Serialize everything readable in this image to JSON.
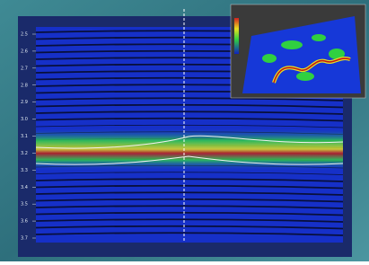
{
  "seismic_view": {
    "time_axis": {
      "ticks": [
        "2.5",
        "2.6",
        "2.7",
        "2.8",
        "2.9",
        "3.0",
        "3.1",
        "3.2",
        "3.3",
        "3.4",
        "3.5",
        "3.6",
        "3.7"
      ]
    }
  }
}
